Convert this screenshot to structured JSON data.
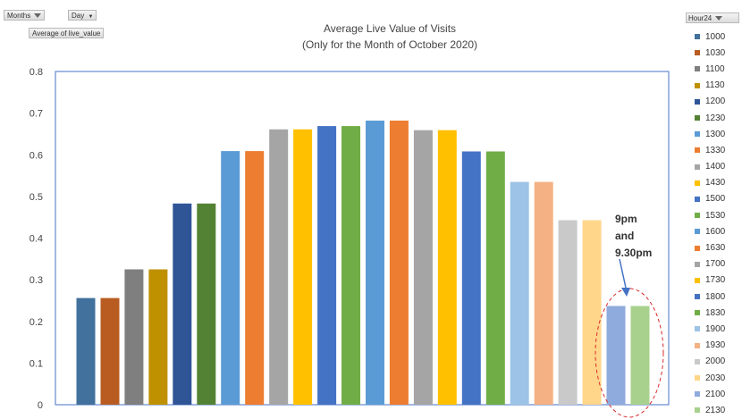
{
  "pivot_buttons": {
    "months": "Months",
    "day": "Day",
    "value_field": "Average of live_value"
  },
  "legend": {
    "title": "Hour24"
  },
  "callout": {
    "line1": "9pm",
    "line2": "and",
    "line3": "9.30pm"
  },
  "chart_data": {
    "type": "bar",
    "title": "Average Live Value of Visits",
    "subtitle": "(Only for the Month of October 2020)",
    "xlabel": "",
    "ylabel": "",
    "ylim": [
      0,
      0.8
    ],
    "yticks": [
      "0",
      "0.1",
      "0.2",
      "0.3",
      "0.4",
      "0.5",
      "0.6",
      "0.7",
      "0.8"
    ],
    "grid": false,
    "legend_position": "right",
    "categories": [
      "1000",
      "1030",
      "1100",
      "1130",
      "1200",
      "1230",
      "1300",
      "1330",
      "1400",
      "1430",
      "1500",
      "1530",
      "1600",
      "1630",
      "1700",
      "1730",
      "1800",
      "1830",
      "1900",
      "1930",
      "2000",
      "2030",
      "2100",
      "2130"
    ],
    "values": [
      0.256,
      0.256,
      0.325,
      0.325,
      0.483,
      0.483,
      0.609,
      0.609,
      0.661,
      0.661,
      0.669,
      0.669,
      0.682,
      0.682,
      0.659,
      0.659,
      0.608,
      0.608,
      0.535,
      0.535,
      0.443,
      0.443,
      0.237,
      0.237
    ],
    "colors": [
      "#41719c",
      "#b85c22",
      "#7f7f7f",
      "#bf9000",
      "#2f5597",
      "#548235",
      "#5b9bd5",
      "#ed7d31",
      "#a5a5a5",
      "#ffc000",
      "#4472c4",
      "#70ad47",
      "#5b9bd5",
      "#ed7d31",
      "#a5a5a5",
      "#ffc000",
      "#4472c4",
      "#70ad47",
      "#9dc3e6",
      "#f4b183",
      "#c9c9c9",
      "#ffd68a",
      "#8faadc",
      "#a9d18e"
    ]
  },
  "colors": {
    "axis": "#4472c4",
    "annotation_circle": "#d92b2b",
    "arrow": "#4472c4"
  }
}
